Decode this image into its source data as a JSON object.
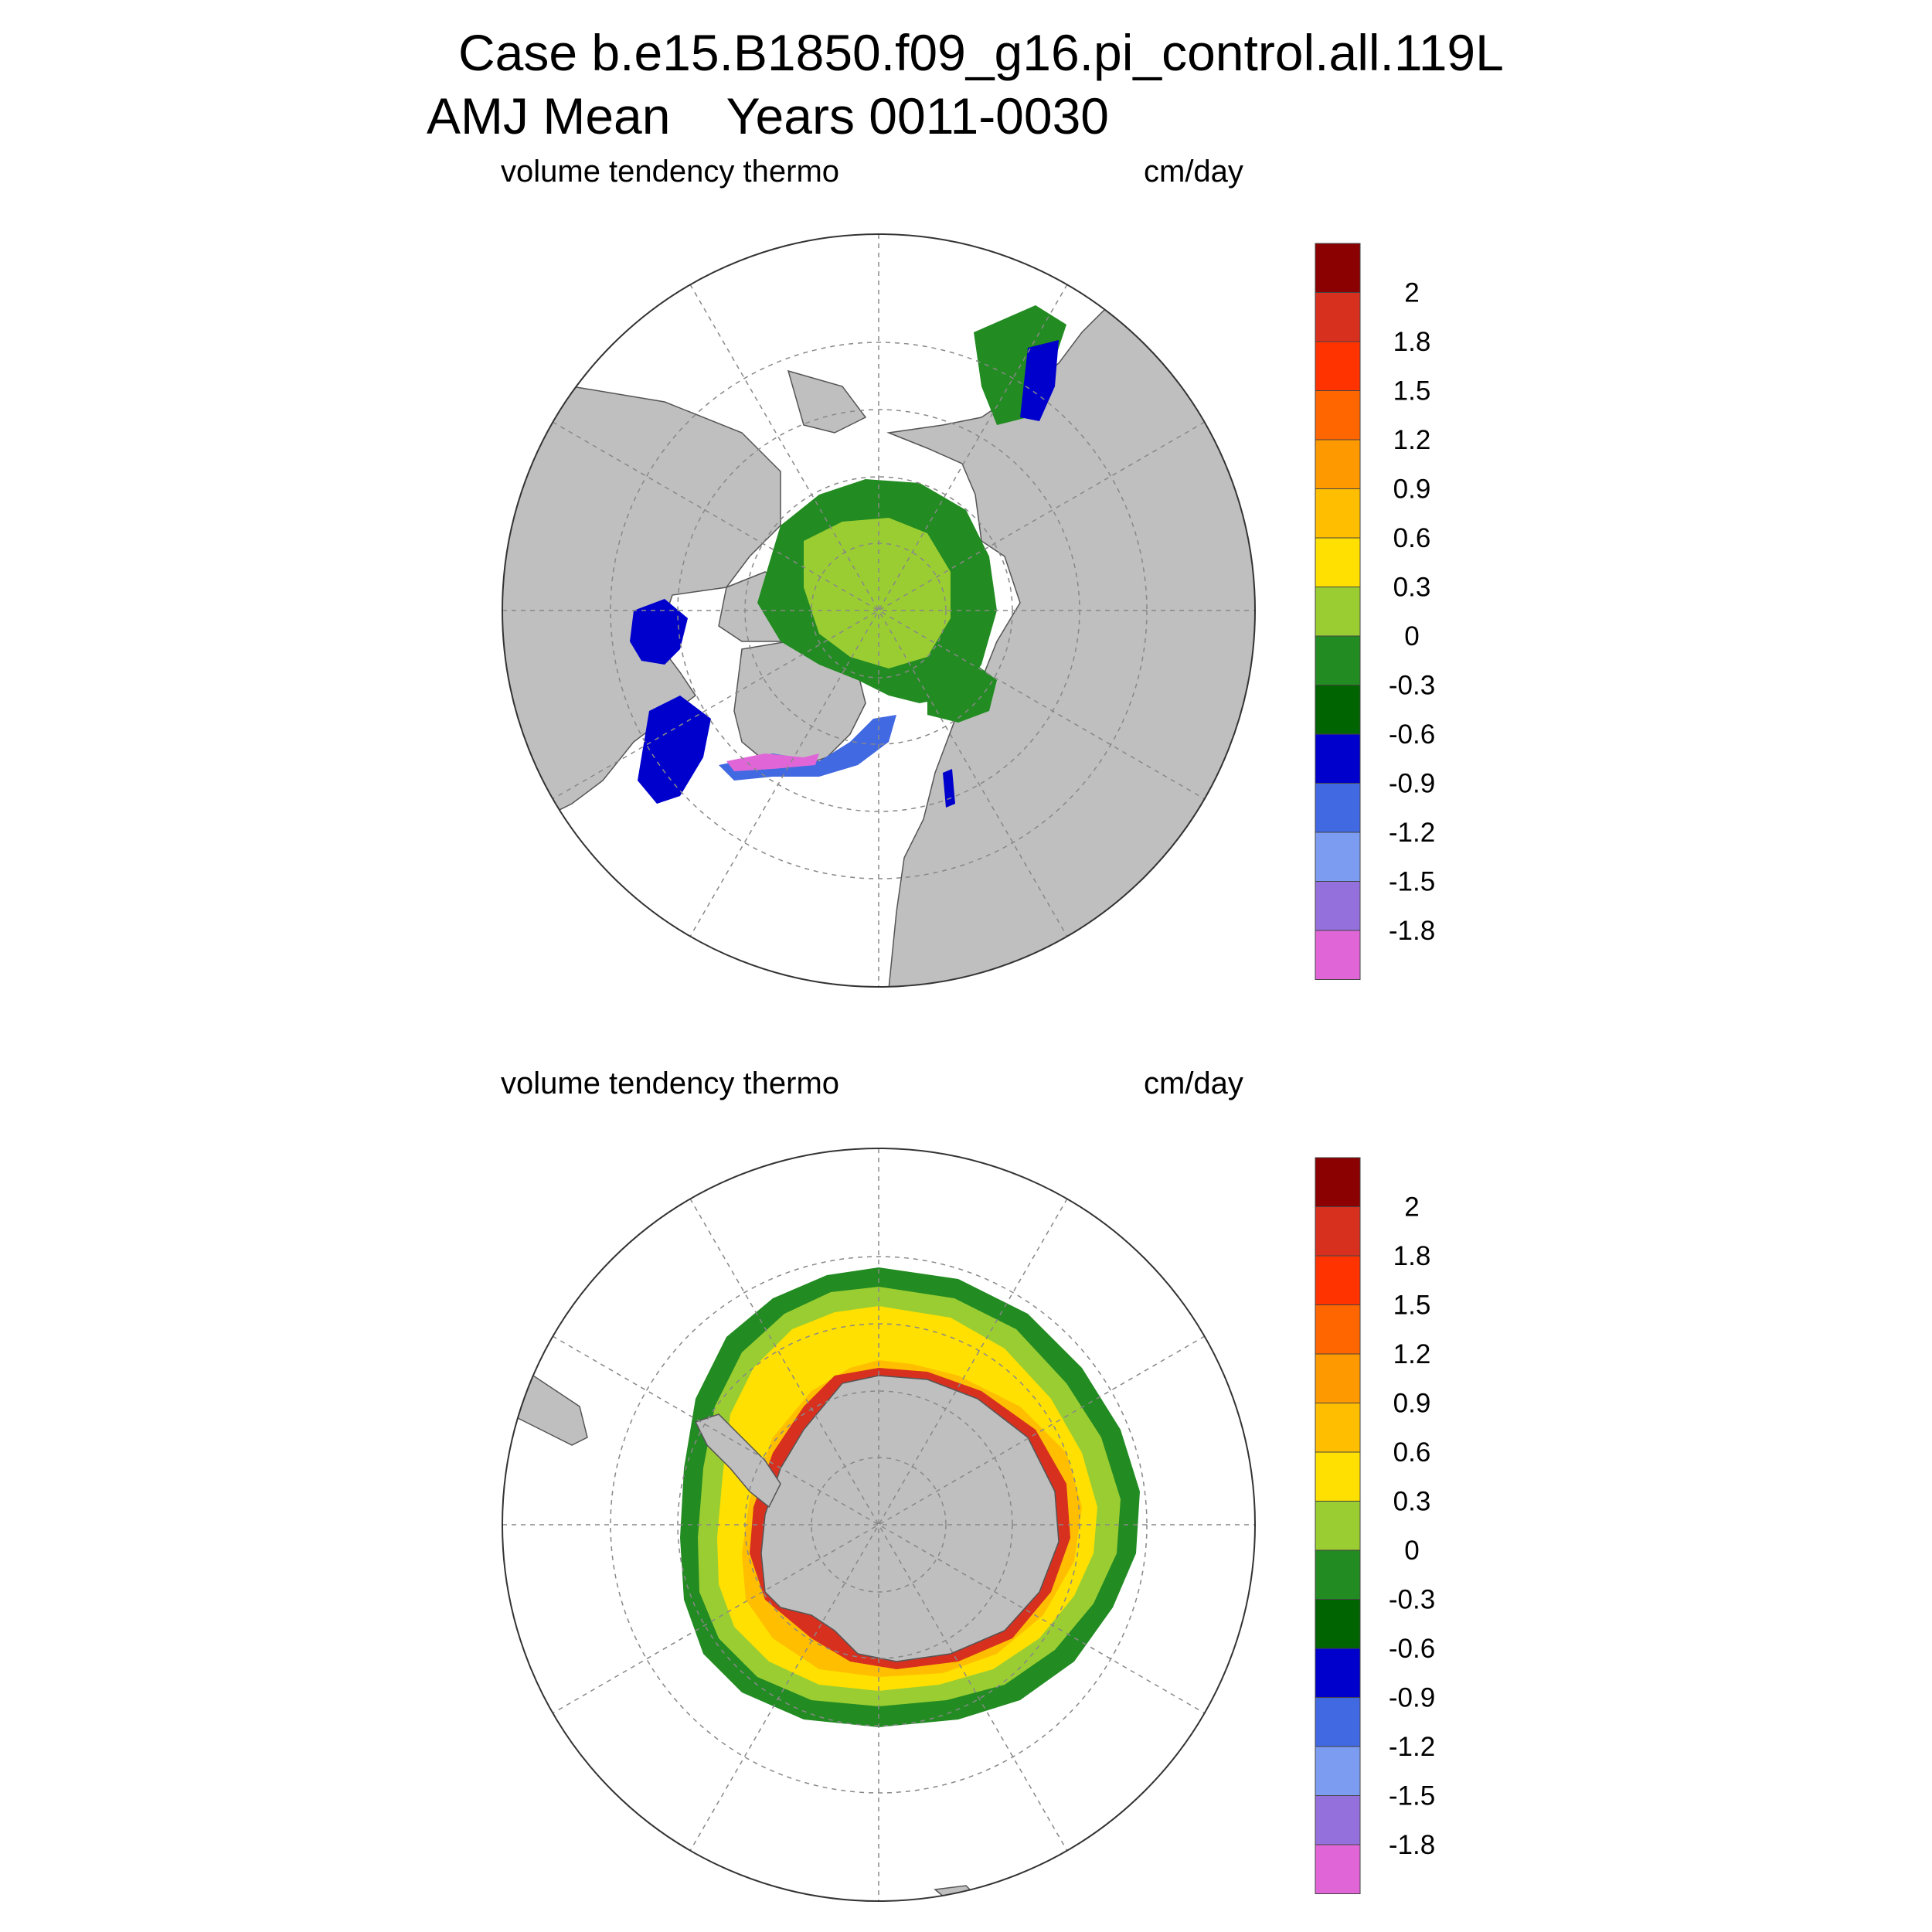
{
  "figure": {
    "title_line1": "Case b.e15.B1850.f09_g16.pi_control.all.119L",
    "title_line2": "AMJ Mean    Years 0011-0030"
  },
  "panels": [
    {
      "left_label": "volume tendency thermo",
      "right_label": "cm/day",
      "hemisphere": "north"
    },
    {
      "left_label": "volume tendency thermo",
      "right_label": "cm/day",
      "hemisphere": "south"
    }
  ],
  "colorbar": {
    "labels": [
      "2",
      "1.8",
      "1.5",
      "1.2",
      "0.9",
      "0.6",
      "0.3",
      "0",
      "-0.3",
      "-0.6",
      "-0.9",
      "-1.2",
      "-1.5",
      "-1.8"
    ],
    "colors": [
      "#8b0000",
      "#d7301f",
      "#ff3300",
      "#ff6600",
      "#ff9900",
      "#ffbf00",
      "#ffe000",
      "#9acd32",
      "#228b22",
      "#006400",
      "#0000cd",
      "#4169e1",
      "#7b9cf0",
      "#9370db",
      "#e066d8"
    ]
  },
  "map_colors": {
    "land": "#bfbfbf",
    "ocean": "#ffffff",
    "grid": "#888888"
  }
}
